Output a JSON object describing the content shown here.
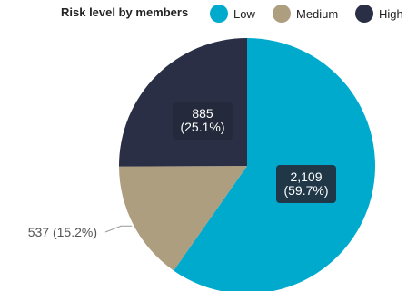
{
  "chart_data": {
    "type": "pie",
    "title": "Risk level by members",
    "legend_position": "top",
    "slices": [
      {
        "name": "Low",
        "value": 2109,
        "percent": 59.7,
        "color": "#00aacc",
        "label": "2,109\n(59.7%)"
      },
      {
        "name": "Medium",
        "value": 537,
        "percent": 15.2,
        "color": "#ad9e80",
        "label": "537 (15.2%)"
      },
      {
        "name": "High",
        "value": 885,
        "percent": 25.1,
        "color": "#2a2f45",
        "label": "885\n(25.1%)"
      }
    ]
  }
}
